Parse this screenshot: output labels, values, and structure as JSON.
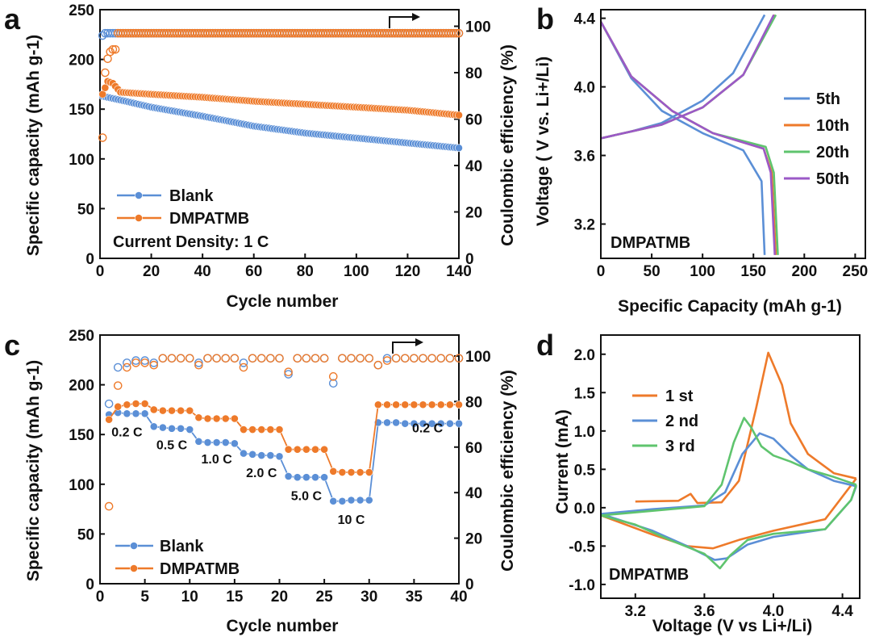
{
  "colors": {
    "blue": "#5b8fd6",
    "orange": "#ee7a2a",
    "green": "#5fc46e",
    "purple": "#9b59c7",
    "axis": "#111111"
  },
  "chart_data": [
    {
      "panel": "a",
      "type": "scatter",
      "xlabel": "Cycle number",
      "ylabel": "Specific capacity (mAh g-1)",
      "ylabel_right": "Coulombic efficiency (%)",
      "xlim": [
        0,
        140
      ],
      "ylim": [
        0,
        250
      ],
      "ylim_right": [
        0,
        107.14
      ],
      "xticks": [
        "0",
        "20",
        "40",
        "60",
        "80",
        "100",
        "120",
        "140"
      ],
      "yticks": [
        "0",
        "50",
        "100",
        "150",
        "200",
        "250"
      ],
      "yticks_right": [
        "0",
        "20",
        "40",
        "60",
        "80",
        "100"
      ],
      "annotation": "Current Density: 1 C",
      "legend": [
        "Blank",
        "DMPATMB"
      ],
      "series": [
        {
          "name": "Blank",
          "axis": "capacity",
          "points": [
            [
              1,
              163
            ],
            [
              10,
              158
            ],
            [
              20,
              152
            ],
            [
              40,
              143
            ],
            [
              60,
              133
            ],
            [
              80,
              126
            ],
            [
              100,
              121
            ],
            [
              120,
              116
            ],
            [
              140,
              111
            ]
          ]
        },
        {
          "name": "DMPATMB",
          "axis": "capacity",
          "points": [
            [
              1,
              165
            ],
            [
              3,
              178
            ],
            [
              5,
              176
            ],
            [
              8,
              167
            ],
            [
              20,
              165
            ],
            [
              40,
              162
            ],
            [
              60,
              158
            ],
            [
              80,
              155
            ],
            [
              100,
              152
            ],
            [
              120,
              149
            ],
            [
              140,
              144
            ]
          ]
        },
        {
          "name": "Blank",
          "axis": "efficiency",
          "points": [
            [
              1,
              96
            ],
            [
              2,
              97
            ],
            [
              5,
              97
            ],
            [
              20,
              97
            ],
            [
              60,
              97
            ],
            [
              100,
              97
            ],
            [
              120,
              97
            ],
            [
              140,
              97
            ]
          ]
        },
        {
          "name": "DMPATMB",
          "axis": "efficiency",
          "points": [
            [
              1,
              52
            ],
            [
              2,
              80
            ],
            [
              3,
              86
            ],
            [
              4,
              89
            ],
            [
              5,
              90
            ],
            [
              6,
              90
            ],
            [
              7,
              97
            ],
            [
              20,
              97
            ],
            [
              60,
              97
            ],
            [
              100,
              97
            ],
            [
              140,
              97
            ]
          ]
        }
      ]
    },
    {
      "panel": "b",
      "type": "line",
      "xlabel": "Specific Capacity (mAh g-1)",
      "ylabel": "Voltage ( V vs. Li+/Li)",
      "xlim": [
        0,
        260
      ],
      "ylim": [
        3.0,
        4.45
      ],
      "xticks": [
        "0",
        "50",
        "100",
        "150",
        "200",
        "250"
      ],
      "yticks": [
        "3.2",
        "3.6",
        "4.0",
        "4.4"
      ],
      "annotation": "DMPATMB",
      "legend": [
        "5th",
        "10th",
        "20th",
        "50th"
      ],
      "series": [
        {
          "name": "5th",
          "charge": [
            [
              0,
              3.7
            ],
            [
              30,
              3.74
            ],
            [
              60,
              3.79
            ],
            [
              100,
              3.92
            ],
            [
              130,
              4.08
            ],
            [
              161,
              4.42
            ]
          ],
          "discharge": [
            [
              0,
              4.38
            ],
            [
              30,
              4.05
            ],
            [
              60,
              3.86
            ],
            [
              100,
              3.73
            ],
            [
              140,
              3.63
            ],
            [
              158,
              3.45
            ],
            [
              161,
              3.02
            ]
          ]
        },
        {
          "name": "10th",
          "charge": [
            [
              0,
              3.7
            ],
            [
              30,
              3.74
            ],
            [
              60,
              3.78
            ],
            [
              100,
              3.88
            ],
            [
              140,
              4.07
            ],
            [
              171,
              4.42
            ]
          ],
          "discharge": [
            [
              0,
              4.38
            ],
            [
              30,
              4.06
            ],
            [
              70,
              3.86
            ],
            [
              110,
              3.73
            ],
            [
              160,
              3.64
            ],
            [
              168,
              3.5
            ],
            [
              172,
              3.02
            ]
          ]
        },
        {
          "name": "20th",
          "charge": [
            [
              0,
              3.7
            ],
            [
              30,
              3.74
            ],
            [
              60,
              3.78
            ],
            [
              100,
              3.88
            ],
            [
              140,
              4.07
            ],
            [
              172,
              4.42
            ]
          ],
          "discharge": [
            [
              0,
              4.38
            ],
            [
              30,
              4.06
            ],
            [
              70,
              3.86
            ],
            [
              110,
              3.73
            ],
            [
              162,
              3.65
            ],
            [
              170,
              3.5
            ],
            [
              174,
              3.02
            ]
          ]
        },
        {
          "name": "50th",
          "charge": [
            [
              0,
              3.7
            ],
            [
              30,
              3.74
            ],
            [
              60,
              3.78
            ],
            [
              100,
              3.88
            ],
            [
              140,
              4.07
            ],
            [
              170,
              4.42
            ]
          ],
          "discharge": [
            [
              0,
              4.38
            ],
            [
              30,
              4.06
            ],
            [
              70,
              3.86
            ],
            [
              110,
              3.73
            ],
            [
              160,
              3.64
            ],
            [
              167,
              3.5
            ],
            [
              171,
              3.02
            ]
          ]
        }
      ]
    },
    {
      "panel": "c",
      "type": "scatter",
      "xlabel": "Cycle number",
      "ylabel": "Specific capacity (mAh g-1)",
      "ylabel_right": "Coulombic efficiency (%)",
      "xlim": [
        0,
        40
      ],
      "ylim": [
        0,
        250
      ],
      "ylim_right": [
        0,
        109.2
      ],
      "xticks": [
        "0",
        "5",
        "10",
        "15",
        "20",
        "25",
        "30",
        "35",
        "40"
      ],
      "yticks": [
        "0",
        "50",
        "100",
        "150",
        "200",
        "250"
      ],
      "yticks_right": [
        "0",
        "20",
        "40",
        "60",
        "80",
        "100"
      ],
      "rate_labels": [
        {
          "text": "0.2 C",
          "cycle": 3,
          "capacity": 148
        },
        {
          "text": "0.5 C",
          "cycle": 8,
          "capacity": 135
        },
        {
          "text": "1.0 C",
          "cycle": 13,
          "capacity": 121
        },
        {
          "text": "2.0 C",
          "cycle": 18,
          "capacity": 107
        },
        {
          "text": "5.0 C",
          "cycle": 23,
          "capacity": 84
        },
        {
          "text": "10 C",
          "cycle": 28,
          "capacity": 60
        },
        {
          "text": "0.2 C",
          "cycle": 36.5,
          "capacity": 152
        }
      ],
      "legend": [
        "Blank",
        "DMPATMB"
      ],
      "series": [
        {
          "name": "Blank",
          "axis": "capacity",
          "values": [
            170,
            172,
            171,
            171,
            171,
            158,
            157,
            156,
            156,
            155,
            143,
            142,
            142,
            142,
            141,
            131,
            130,
            129,
            129,
            128,
            108,
            107,
            107,
            107,
            107,
            83,
            83,
            84,
            84,
            84,
            162,
            162,
            162,
            161,
            161,
            161,
            161,
            161,
            161,
            161
          ]
        },
        {
          "name": "DMPATMB",
          "axis": "capacity",
          "values": [
            165,
            178,
            180,
            181,
            181,
            175,
            174,
            174,
            174,
            174,
            167,
            166,
            166,
            166,
            166,
            155,
            155,
            155,
            155,
            155,
            135,
            135,
            135,
            135,
            135,
            113,
            112,
            112,
            112,
            112,
            180,
            180,
            180,
            180,
            180,
            180,
            180,
            180,
            180,
            180
          ]
        },
        {
          "name": "Blank",
          "axis": "efficiency",
          "values": [
            79,
            95,
            97,
            98,
            98,
            97,
            99,
            99,
            99,
            99,
            97,
            99,
            99,
            99,
            99,
            97,
            99,
            99,
            99,
            99,
            92,
            99,
            99,
            99,
            99,
            88,
            99,
            99,
            99,
            99,
            96,
            99,
            99,
            99,
            99,
            99,
            99,
            99,
            99,
            99
          ]
        },
        {
          "name": "DMPATMB",
          "axis": "efficiency",
          "values": [
            34,
            87,
            95,
            97,
            97,
            96,
            99,
            99,
            99,
            99,
            96,
            99,
            99,
            99,
            99,
            95,
            99,
            99,
            99,
            99,
            93,
            99,
            99,
            99,
            99,
            91,
            99,
            99,
            99,
            99,
            96,
            98,
            99,
            99,
            99,
            99,
            99,
            99,
            99,
            99
          ]
        }
      ]
    },
    {
      "panel": "d",
      "type": "line",
      "xlabel": "Voltage (V vs Li+/Li)",
      "ylabel": "Current (mA)",
      "xlim": [
        3.0,
        4.5
      ],
      "ylim": [
        -1.18,
        2.25
      ],
      "xticks": [
        "3.2",
        "3.6",
        "4.0",
        "4.4"
      ],
      "yticks": [
        "-1.0",
        "-0.5",
        "0.0",
        "0.5",
        "1.0",
        "1.5",
        "2.0"
      ],
      "annotation": "DMPATMB",
      "legend": [
        "1 st",
        "2 nd",
        "3 rd"
      ],
      "series": [
        {
          "name": "1 st",
          "forward": [
            [
              3.2,
              0.08
            ],
            [
              3.45,
              0.09
            ],
            [
              3.52,
              0.18
            ],
            [
              3.56,
              0.06
            ],
            [
              3.7,
              0.07
            ],
            [
              3.8,
              0.35
            ],
            [
              3.9,
              1.3
            ],
            [
              3.97,
              2.02
            ],
            [
              4.05,
              1.6
            ],
            [
              4.1,
              1.1
            ],
            [
              4.2,
              0.7
            ],
            [
              4.35,
              0.45
            ],
            [
              4.48,
              0.38
            ]
          ],
          "reverse": [
            [
              4.48,
              0.38
            ],
            [
              4.3,
              -0.15
            ],
            [
              4.0,
              -0.3
            ],
            [
              3.8,
              -0.42
            ],
            [
              3.65,
              -0.53
            ],
            [
              3.5,
              -0.5
            ],
            [
              3.3,
              -0.35
            ],
            [
              3.0,
              -0.1
            ]
          ]
        },
        {
          "name": "2 nd",
          "forward": [
            [
              3.0,
              -0.08
            ],
            [
              3.3,
              -0.02
            ],
            [
              3.6,
              0.03
            ],
            [
              3.72,
              0.2
            ],
            [
              3.82,
              0.7
            ],
            [
              3.92,
              0.97
            ],
            [
              4.0,
              0.9
            ],
            [
              4.1,
              0.68
            ],
            [
              4.2,
              0.5
            ],
            [
              4.35,
              0.35
            ],
            [
              4.48,
              0.28
            ]
          ],
          "reverse": [
            [
              4.48,
              0.28
            ],
            [
              4.45,
              0.1
            ],
            [
              4.3,
              -0.28
            ],
            [
              4.0,
              -0.38
            ],
            [
              3.85,
              -0.48
            ],
            [
              3.73,
              -0.66
            ],
            [
              3.66,
              -0.68
            ],
            [
              3.5,
              -0.5
            ],
            [
              3.3,
              -0.3
            ],
            [
              3.0,
              -0.08
            ]
          ]
        },
        {
          "name": "3 rd",
          "forward": [
            [
              3.0,
              -0.1
            ],
            [
              3.3,
              -0.04
            ],
            [
              3.6,
              0.02
            ],
            [
              3.7,
              0.3
            ],
            [
              3.77,
              0.85
            ],
            [
              3.83,
              1.17
            ],
            [
              3.87,
              1.05
            ],
            [
              3.93,
              0.8
            ],
            [
              4.0,
              0.68
            ],
            [
              4.1,
              0.6
            ],
            [
              4.2,
              0.5
            ],
            [
              4.35,
              0.4
            ],
            [
              4.48,
              0.3
            ]
          ],
          "reverse": [
            [
              4.48,
              0.3
            ],
            [
              4.45,
              0.1
            ],
            [
              4.3,
              -0.28
            ],
            [
              4.0,
              -0.34
            ],
            [
              3.85,
              -0.42
            ],
            [
              3.75,
              -0.62
            ],
            [
              3.69,
              -0.79
            ],
            [
              3.6,
              -0.6
            ],
            [
              3.4,
              -0.42
            ],
            [
              3.2,
              -0.22
            ],
            [
              3.0,
              -0.1
            ]
          ]
        }
      ]
    }
  ]
}
